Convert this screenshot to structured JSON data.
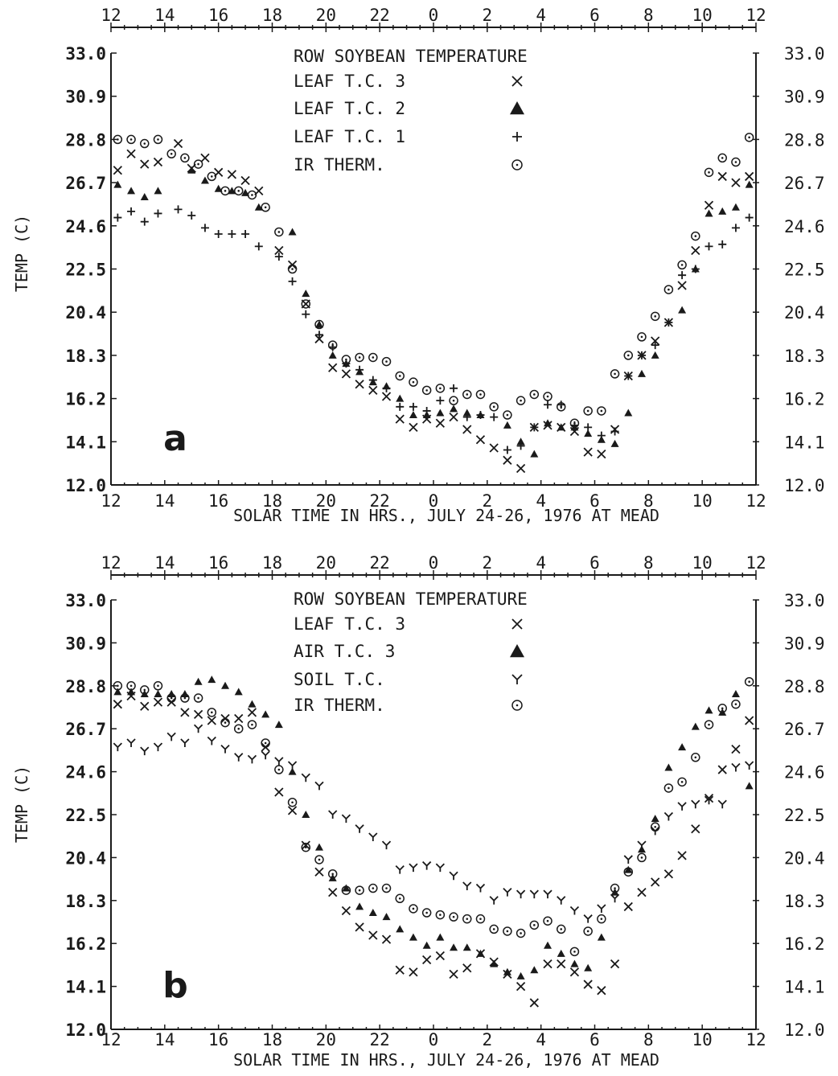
{
  "chart_data": [
    {
      "type": "scatter",
      "panel_label": "a",
      "legend_title": "ROW SOYBEAN TEMPERATURE",
      "xlabel": "SOLAR TIME IN HRS., JULY 24-26, 1976 AT MEAD",
      "ylabel": "TEMP (C)",
      "x_tick_labels": [
        "12",
        "14",
        "16",
        "18",
        "20",
        "22",
        "0",
        "2",
        "4",
        "6",
        "8",
        "10",
        "12"
      ],
      "y_tick_labels": [
        "12.0",
        "14.1",
        "16.2",
        "18.3",
        "20.4",
        "22.5",
        "24.6",
        "26.7",
        "28.8",
        "30.9",
        "33.0"
      ],
      "ylim": [
        12.0,
        33.0
      ],
      "xlim_hours_elapsed": [
        0,
        24
      ],
      "legend_position": "top-center",
      "series": [
        {
          "name": "LEAF T.C. 3",
          "marker": "x",
          "x": [
            0.25,
            0.75,
            1.25,
            1.75,
            2.5,
            3.0,
            3.5,
            4.0,
            4.5,
            5.0,
            5.5,
            6.25,
            6.75,
            7.25,
            7.75,
            8.25,
            8.75,
            9.25,
            9.75,
            10.25,
            10.75,
            11.25,
            11.75,
            12.25,
            12.75,
            13.25,
            13.75,
            14.25,
            14.75,
            15.25,
            15.75,
            16.25,
            16.75,
            17.25,
            17.75,
            18.25,
            18.75,
            19.25,
            19.75,
            20.25,
            20.75,
            21.25,
            21.75,
            22.25,
            22.75,
            23.25,
            23.75
          ],
          "y": [
            27.3,
            28.1,
            27.6,
            27.7,
            28.6,
            27.4,
            27.9,
            27.2,
            27.1,
            26.8,
            26.3,
            23.4,
            22.7,
            20.8,
            19.1,
            17.7,
            17.4,
            16.9,
            16.6,
            16.3,
            15.2,
            14.8,
            15.2,
            15.0,
            15.3,
            14.7,
            14.2,
            13.8,
            13.2,
            12.8,
            14.8,
            14.9,
            14.8,
            14.6,
            13.6,
            13.5,
            14.7,
            17.3,
            18.3,
            19.0,
            19.9,
            21.7,
            23.4,
            25.6,
            27.0,
            26.7,
            27.0
          ]
        },
        {
          "name": "LEAF T.C. 2",
          "marker": "triangle",
          "x": [
            0.25,
            0.75,
            1.25,
            1.75,
            3.0,
            3.5,
            4.0,
            4.5,
            5.0,
            5.5,
            6.75,
            7.25,
            7.75,
            8.25,
            8.75,
            9.25,
            9.75,
            10.25,
            10.75,
            11.25,
            11.75,
            12.25,
            12.75,
            13.25,
            13.75,
            14.75,
            15.25,
            15.75,
            16.25,
            16.75,
            17.25,
            17.75,
            18.25,
            18.75,
            19.25,
            19.75,
            20.25,
            21.25,
            21.75,
            22.25,
            22.75,
            23.25,
            23.75
          ],
          "y": [
            26.6,
            26.3,
            26.0,
            26.3,
            27.3,
            26.8,
            26.4,
            26.3,
            26.2,
            25.5,
            24.3,
            21.3,
            19.8,
            18.3,
            17.9,
            17.5,
            17.0,
            16.8,
            16.2,
            15.4,
            15.4,
            15.5,
            15.7,
            15.5,
            15.4,
            14.9,
            14.1,
            13.5,
            15.0,
            14.8,
            14.8,
            14.5,
            14.2,
            14.0,
            15.5,
            17.4,
            18.3,
            20.5,
            22.5,
            25.2,
            25.3,
            25.5,
            26.6
          ]
        },
        {
          "name": "LEAF T.C. 1",
          "marker": "plus",
          "x": [
            0.25,
            0.75,
            1.25,
            1.75,
            2.5,
            3.0,
            3.5,
            4.0,
            4.5,
            5.0,
            5.5,
            6.25,
            6.75,
            7.25,
            7.75,
            8.25,
            8.75,
            9.25,
            9.75,
            10.25,
            10.75,
            11.25,
            11.75,
            12.25,
            12.75,
            13.25,
            13.75,
            14.25,
            14.75,
            15.25,
            15.75,
            16.25,
            16.75,
            17.25,
            17.75,
            18.25,
            18.75,
            19.25,
            19.75,
            20.25,
            20.75,
            21.25,
            21.75,
            22.25,
            22.75,
            23.25,
            23.75
          ],
          "y": [
            25.0,
            25.3,
            24.8,
            25.2,
            25.4,
            25.1,
            24.5,
            24.2,
            24.2,
            24.2,
            23.6,
            23.1,
            21.9,
            20.3,
            19.3,
            18.7,
            17.9,
            17.6,
            17.1,
            16.7,
            15.8,
            15.8,
            15.6,
            16.1,
            16.7,
            15.3,
            15.4,
            15.3,
            13.7,
            13.9,
            14.8,
            15.9,
            15.9,
            14.9,
            14.8,
            14.4,
            14.6,
            17.3,
            18.3,
            18.8,
            19.9,
            22.2,
            22.5,
            23.6,
            23.7,
            24.5,
            25.0
          ]
        },
        {
          "name": "IR THERM.",
          "marker": "circle",
          "x": [
            0.25,
            0.75,
            1.25,
            1.75,
            2.25,
            2.75,
            3.25,
            3.75,
            4.25,
            4.75,
            5.25,
            5.75,
            6.25,
            6.75,
            7.25,
            7.75,
            8.25,
            8.75,
            9.25,
            9.75,
            10.25,
            10.75,
            11.25,
            11.75,
            12.25,
            12.75,
            13.25,
            13.75,
            14.25,
            14.75,
            15.25,
            15.75,
            16.25,
            16.75,
            17.25,
            17.75,
            18.25,
            18.75,
            19.25,
            19.75,
            20.25,
            20.75,
            21.25,
            21.75,
            22.25,
            22.75,
            23.25,
            23.75
          ],
          "y": [
            28.8,
            28.8,
            28.6,
            28.8,
            28.1,
            27.9,
            27.6,
            27.0,
            26.3,
            26.3,
            26.1,
            25.5,
            24.3,
            22.5,
            20.8,
            19.8,
            18.8,
            18.1,
            18.2,
            18.2,
            18.0,
            17.3,
            17.0,
            16.6,
            16.7,
            16.1,
            16.4,
            16.4,
            15.8,
            15.4,
            16.1,
            16.4,
            16.3,
            15.8,
            15.0,
            15.6,
            15.6,
            17.4,
            18.3,
            19.2,
            20.2,
            21.5,
            22.7,
            24.1,
            27.2,
            27.9,
            27.7,
            28.9
          ]
        }
      ]
    },
    {
      "type": "scatter",
      "panel_label": "b",
      "legend_title": "ROW SOYBEAN TEMPERATURE",
      "xlabel": "SOLAR TIME IN HRS., JULY 24-26, 1976 AT MEAD",
      "ylabel": "TEMP (C)",
      "x_tick_labels": [
        "12",
        "14",
        "16",
        "18",
        "20",
        "22",
        "0",
        "2",
        "4",
        "6",
        "8",
        "10",
        "12"
      ],
      "y_tick_labels": [
        "12.0",
        "14.1",
        "16.2",
        "18.3",
        "20.4",
        "22.5",
        "24.6",
        "26.7",
        "28.8",
        "30.9",
        "33.0"
      ],
      "ylim": [
        12.0,
        33.0
      ],
      "xlim_hours_elapsed": [
        0,
        24
      ],
      "legend_position": "top-center",
      "series": [
        {
          "name": "LEAF T.C. 3",
          "marker": "x",
          "x": [
            0.25,
            0.75,
            1.25,
            1.75,
            2.25,
            2.75,
            3.25,
            3.75,
            4.25,
            4.75,
            5.25,
            5.75,
            6.25,
            6.75,
            7.25,
            7.75,
            8.25,
            8.75,
            9.25,
            9.75,
            10.25,
            10.75,
            11.25,
            11.75,
            12.25,
            12.75,
            13.25,
            13.75,
            14.25,
            14.75,
            15.25,
            15.75,
            16.25,
            16.75,
            17.25,
            17.75,
            18.25,
            18.75,
            19.25,
            19.75,
            20.25,
            20.75,
            21.25,
            21.75,
            22.25,
            22.75,
            23.25,
            23.75
          ],
          "y": [
            27.9,
            28.3,
            27.8,
            28.0,
            28.0,
            27.5,
            27.4,
            27.1,
            27.2,
            27.2,
            27.5,
            25.8,
            23.6,
            22.7,
            21.0,
            19.7,
            18.7,
            17.8,
            17.0,
            16.6,
            16.4,
            14.9,
            14.8,
            15.4,
            15.6,
            14.7,
            15.0,
            15.7,
            15.3,
            14.7,
            14.1,
            13.3,
            15.2,
            15.2,
            14.8,
            14.2,
            13.9,
            15.2,
            18.0,
            18.7,
            19.2,
            19.6,
            20.5,
            21.8,
            23.3,
            24.7,
            25.7,
            27.1
          ]
        },
        {
          "name": "AIR T.C. 3",
          "marker": "triangle",
          "x": [
            0.25,
            0.75,
            1.25,
            1.75,
            2.25,
            2.75,
            3.25,
            3.75,
            4.25,
            4.75,
            5.25,
            5.75,
            6.25,
            6.75,
            7.25,
            7.75,
            8.25,
            8.75,
            9.25,
            9.75,
            10.25,
            10.75,
            11.25,
            11.75,
            12.25,
            12.75,
            13.25,
            13.75,
            14.25,
            14.75,
            15.25,
            15.75,
            16.25,
            16.75,
            17.25,
            17.75,
            18.25,
            18.75,
            19.25,
            19.75,
            20.25,
            20.75,
            21.25,
            21.75,
            22.25,
            22.75,
            23.25,
            23.75
          ],
          "y": [
            28.5,
            28.5,
            28.4,
            28.4,
            28.4,
            28.4,
            29.0,
            29.1,
            28.8,
            28.5,
            27.9,
            27.4,
            26.9,
            24.6,
            22.5,
            20.9,
            19.4,
            18.9,
            18.0,
            17.7,
            17.5,
            16.9,
            16.5,
            16.1,
            16.5,
            16.0,
            16.0,
            15.7,
            15.2,
            14.8,
            14.6,
            14.9,
            16.1,
            15.7,
            15.2,
            15.0,
            16.5,
            18.7,
            19.8,
            20.8,
            22.3,
            24.8,
            25.8,
            26.8,
            27.6,
            27.5,
            28.4,
            23.9
          ]
        },
        {
          "name": "SOIL T.C.",
          "marker": "y",
          "x": [
            0.25,
            0.75,
            1.25,
            1.75,
            2.25,
            2.75,
            3.25,
            3.75,
            4.25,
            4.75,
            5.25,
            5.75,
            6.25,
            6.75,
            7.25,
            7.75,
            8.25,
            8.75,
            9.25,
            9.75,
            10.25,
            10.75,
            11.25,
            11.75,
            12.25,
            12.75,
            13.25,
            13.75,
            14.25,
            14.75,
            15.25,
            15.75,
            16.25,
            16.75,
            17.25,
            17.75,
            18.25,
            18.75,
            19.25,
            19.75,
            20.25,
            20.75,
            21.25,
            21.75,
            22.25,
            22.75,
            23.25,
            23.75
          ],
          "y": [
            25.8,
            26.0,
            25.6,
            25.8,
            26.3,
            26.0,
            26.7,
            26.1,
            25.7,
            25.3,
            25.2,
            25.4,
            25.1,
            24.9,
            24.3,
            23.9,
            22.5,
            22.3,
            21.8,
            21.4,
            21.0,
            19.8,
            19.9,
            20.0,
            19.9,
            19.5,
            19.0,
            18.9,
            18.3,
            18.7,
            18.6,
            18.6,
            18.6,
            18.3,
            17.8,
            17.4,
            17.9,
            18.4,
            20.3,
            21.0,
            21.7,
            22.4,
            22.9,
            23.0,
            23.2,
            23.0,
            24.8,
            24.9
          ]
        },
        {
          "name": "IR THERM.",
          "marker": "circle",
          "x": [
            0.25,
            0.75,
            1.25,
            1.75,
            2.25,
            2.75,
            3.25,
            3.75,
            4.25,
            4.75,
            5.25,
            5.75,
            6.25,
            6.75,
            7.25,
            7.75,
            8.25,
            8.75,
            9.25,
            9.75,
            10.25,
            10.75,
            11.25,
            11.75,
            12.25,
            12.75,
            13.25,
            13.75,
            14.25,
            14.75,
            15.25,
            15.75,
            16.25,
            16.75,
            17.25,
            17.75,
            18.25,
            18.75,
            19.25,
            19.75,
            20.25,
            20.75,
            21.25,
            21.75,
            22.25,
            22.75,
            23.25,
            23.75
          ],
          "y": [
            28.8,
            28.8,
            28.6,
            28.8,
            28.2,
            28.2,
            28.2,
            27.5,
            27.0,
            26.7,
            26.9,
            26.0,
            24.7,
            23.1,
            20.9,
            20.3,
            19.6,
            18.8,
            18.8,
            18.9,
            18.9,
            18.4,
            17.9,
            17.7,
            17.6,
            17.5,
            17.4,
            17.4,
            16.9,
            16.8,
            16.7,
            17.1,
            17.3,
            16.9,
            15.8,
            16.8,
            17.4,
            18.9,
            19.7,
            20.4,
            21.9,
            23.8,
            24.1,
            25.3,
            26.9,
            27.7,
            27.9,
            29.0
          ]
        }
      ]
    }
  ]
}
